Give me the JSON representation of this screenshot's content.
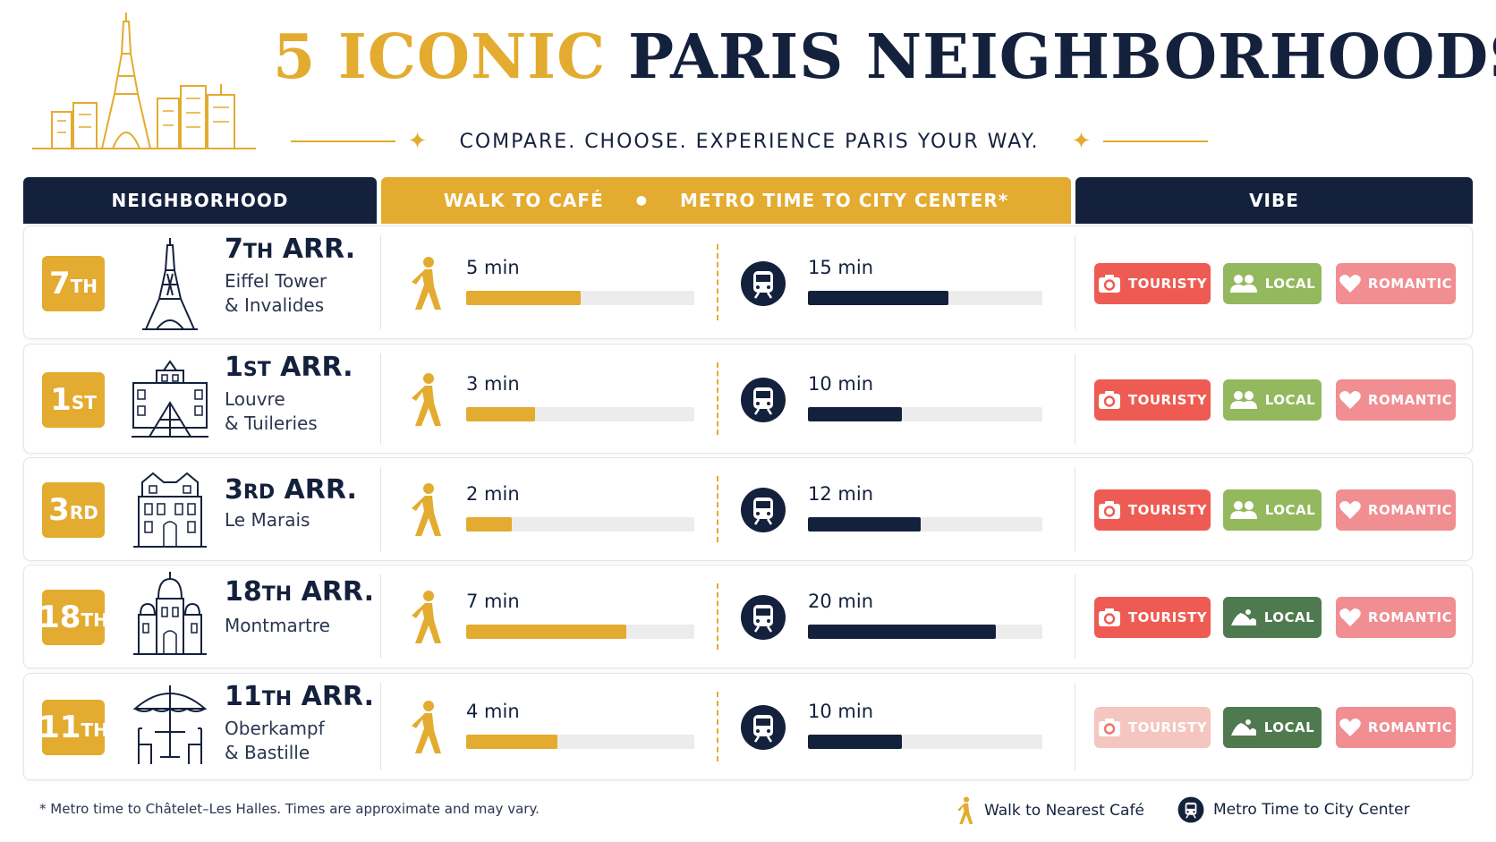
{
  "header": {
    "title_gold": "5 ICONIC",
    "title_navy": "PARIS NEIGHBORHOODS",
    "subtitle": "COMPARE. CHOOSE. EXPERIENCE PARIS YOUR WAY."
  },
  "table_headers": {
    "neighborhood": "NEIGHBORHOOD",
    "walk": "WALK TO CAFÉ",
    "metro": "METRO TIME TO CITY CENTER*",
    "vibe": "VIBE"
  },
  "tags": {
    "touristy": "TOURISTY",
    "local": "LOCAL",
    "romantic": "ROMANTIC"
  },
  "colors": {
    "navy": "#14213d",
    "gold": "#e3ab2f",
    "touristy": "#ee5b53",
    "local_light": "#94b85e",
    "local_dark": "#4f7a4f",
    "romantic": "#f08e92"
  },
  "rows": [
    {
      "num": "7",
      "suffix": "TH",
      "title_num": "7",
      "title_suffix": "TH",
      "title_rest": " ARR.",
      "desc": "Eiffel Tower\n& Invalides",
      "icon": "eiffel-tower-icon",
      "walk": "5 min",
      "walk_min": 5,
      "metro": "15 min",
      "metro_min": 15,
      "touristy_faded": false,
      "local_style": "light"
    },
    {
      "num": "1",
      "suffix": "ST",
      "title_num": "1",
      "title_suffix": "ST",
      "title_rest": " ARR.",
      "desc": "Louvre\n& Tuileries",
      "icon": "louvre-pyramid-icon",
      "walk": "3 min",
      "walk_min": 3,
      "metro": "10 min",
      "metro_min": 10,
      "touristy_faded": false,
      "local_style": "light"
    },
    {
      "num": "3",
      "suffix": "RD",
      "title_num": "3",
      "title_suffix": "RD",
      "title_rest": " ARR.",
      "desc": "Le Marais",
      "icon": "hotel-de-ville-icon",
      "walk": "2 min",
      "walk_min": 2,
      "metro": "12 min",
      "metro_min": 12,
      "touristy_faded": false,
      "local_style": "light"
    },
    {
      "num": "18",
      "suffix": "TH",
      "title_num": "18",
      "title_suffix": "TH",
      "title_rest": " ARR.",
      "desc": "Montmartre",
      "icon": "sacre-coeur-icon",
      "walk": "7 min",
      "walk_min": 7,
      "metro": "20 min",
      "metro_min": 20,
      "touristy_faded": false,
      "local_style": "dark"
    },
    {
      "num": "11",
      "suffix": "TH",
      "title_num": "11",
      "title_suffix": "TH",
      "title_rest": " ARR.",
      "desc": "Oberkampf\n& Bastille",
      "icon": "cafe-table-icon",
      "walk": "4 min",
      "walk_min": 4,
      "metro": "10 min",
      "metro_min": 10,
      "touristy_faded": true,
      "local_style": "dark"
    }
  ],
  "footer": {
    "note": "* Metro time to Châtelet–Les Halles. Times are approximate and may vary.",
    "legend_walk": "Walk to Nearest Café",
    "legend_metro": "Metro Time to City Center"
  }
}
